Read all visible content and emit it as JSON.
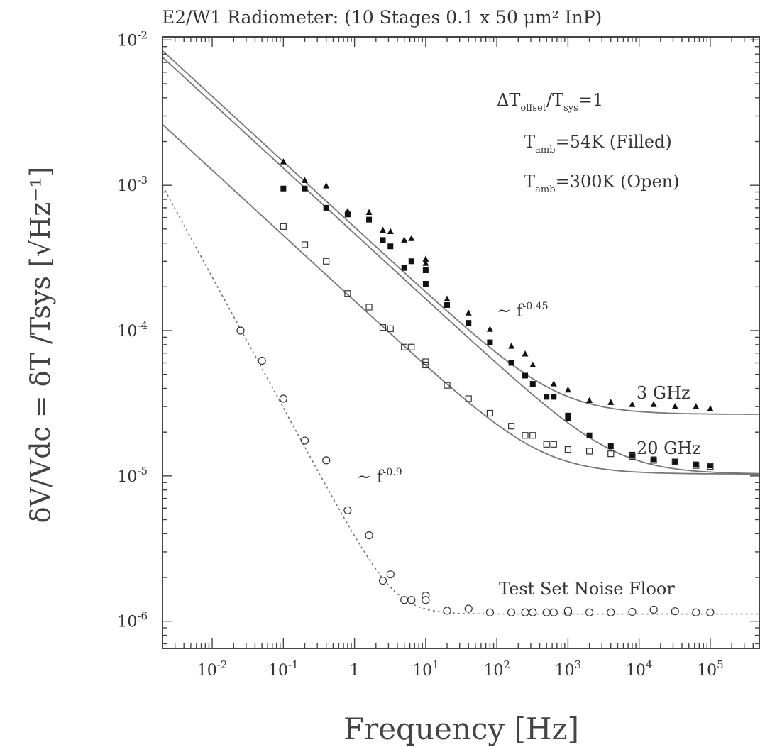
{
  "chart_data": {
    "type": "scatter",
    "title": "E2/W1 Radiometer: (10 Stages 0.1 x 50 μm² InP)",
    "xlabel": "Frequency [Hz]",
    "ylabel": "δV/Vdc = δT /Tsys [√Hz⁻¹]",
    "x_scale": "log",
    "y_scale": "log",
    "xlim": [
      0.002,
      500000
    ],
    "ylim": [
      6.5e-07,
      0.0105
    ],
    "x_ticks": [
      {
        "value": 0.01,
        "label": "10-2"
      },
      {
        "value": 0.1,
        "label": "10-1"
      },
      {
        "value": 1,
        "label": "1"
      },
      {
        "value": 10,
        "label": "101"
      },
      {
        "value": 100,
        "label": "102"
      },
      {
        "value": 1000,
        "label": "103"
      },
      {
        "value": 10000,
        "label": "104"
      },
      {
        "value": 100000,
        "label": "105"
      }
    ],
    "y_ticks": [
      {
        "value": 0.01,
        "label": "10-2"
      },
      {
        "value": 0.001,
        "label": "10-3"
      },
      {
        "value": 0.0001,
        "label": "10-4"
      },
      {
        "value": 1e-05,
        "label": "10-5"
      },
      {
        "value": 1e-06,
        "label": "10-6"
      }
    ],
    "series": [
      {
        "marker": "triangle-filled",
        "x": [
          0.1,
          0.2,
          0.4,
          0.8,
          1.6,
          2.5,
          3.2,
          5,
          6.3,
          10,
          10,
          20,
          40,
          80,
          160,
          250,
          320,
          630,
          1000,
          2000,
          4000,
          8000,
          16000,
          32000,
          63000,
          100000
        ],
        "y": [
          0.00145,
          0.00108,
          0.00099,
          0.00066,
          0.00065,
          0.00049,
          0.00048,
          0.00042,
          0.00043,
          0.00031,
          0.00029,
          0.000165,
          0.000132,
          0.000102,
          7.8e-05,
          6.9e-05,
          5.8e-05,
          4.3e-05,
          3.9e-05,
          3.3e-05,
          3.2e-05,
          3.1e-05,
          3.1e-05,
          3e-05,
          3e-05,
          2.9e-05
        ]
      },
      {
        "marker": "square-filled",
        "x": [
          0.1,
          0.2,
          0.4,
          0.8,
          1.6,
          2.5,
          3.2,
          5,
          6.3,
          10,
          10,
          20,
          40,
          80,
          160,
          250,
          320,
          500,
          630,
          1000,
          1000,
          2000,
          4000,
          8000,
          16000,
          32000,
          63000,
          100000
        ],
        "y": [
          0.00095,
          0.00095,
          0.0007,
          0.00063,
          0.00058,
          0.00042,
          0.00038,
          0.00027,
          0.0003,
          0.00026,
          0.00021,
          0.00015,
          0.000113,
          8.3e-05,
          6e-05,
          4.9e-05,
          4.3e-05,
          3.5e-05,
          3.5e-05,
          2.6e-05,
          2.5e-05,
          1.9e-05,
          1.6e-05,
          1.4e-05,
          1.3e-05,
          1.25e-05,
          1.2e-05,
          1.18e-05
        ]
      },
      {
        "marker": "square-open",
        "x": [
          0.1,
          0.2,
          0.4,
          0.8,
          1.6,
          2.5,
          3.2,
          5,
          6.3,
          10,
          10,
          20,
          40,
          80,
          160,
          250,
          320,
          500,
          630,
          1000,
          2000,
          4000,
          8000,
          16000,
          32000,
          63000,
          100000
        ],
        "y": [
          0.00052,
          0.00039,
          0.0003,
          0.00018,
          0.000145,
          0.000105,
          0.000103,
          7.7e-05,
          7.7e-05,
          6.1e-05,
          5.8e-05,
          4.2e-05,
          3.4e-05,
          2.7e-05,
          2.2e-05,
          1.9e-05,
          1.9e-05,
          1.65e-05,
          1.65e-05,
          1.52e-05,
          1.48e-05,
          1.42e-05,
          1.36e-05,
          1.28e-05,
          1.25e-05,
          1.18e-05,
          1.16e-05
        ]
      },
      {
        "marker": "circle-open",
        "x": [
          0.025,
          0.05,
          0.1,
          0.2,
          0.4,
          0.8,
          1.6,
          2.5,
          3.2,
          5,
          6.3,
          10,
          10,
          20,
          40,
          80,
          160,
          250,
          320,
          500,
          630,
          1000,
          1000,
          2000,
          4000,
          8000,
          16000,
          32000,
          63000,
          100000
        ],
        "y": [
          0.0001,
          6.2e-05,
          3.4e-05,
          1.75e-05,
          1.28e-05,
          5.8e-06,
          3.9e-06,
          1.9e-06,
          2.1e-06,
          1.4e-06,
          1.4e-06,
          1.5e-06,
          1.4e-06,
          1.18e-06,
          1.22e-06,
          1.15e-06,
          1.15e-06,
          1.15e-06,
          1.15e-06,
          1.15e-06,
          1.15e-06,
          1.15e-06,
          1.18e-06,
          1.15e-06,
          1.15e-06,
          1.16e-06,
          1.2e-06,
          1.17e-06,
          1.15e-06,
          1.15e-06
        ]
      }
    ],
    "fit_curves": [
      {
        "style": "solid",
        "A": 0.000515,
        "alpha": 0.45,
        "floor": 2.65e-05
      },
      {
        "style": "solid",
        "A": 0.000465,
        "alpha": 0.45,
        "floor": 1.03e-05
      },
      {
        "style": "solid",
        "A": 0.00016,
        "alpha": 0.45,
        "floor": 1.03e-05
      },
      {
        "style": "dotted",
        "A": 3.7e-06,
        "alpha": 0.9,
        "floor": 1.12e-06
      }
    ],
    "annotations": {
      "legend_line1_main": "ΔT",
      "legend_line1_sub1": "offset",
      "legend_line1_mid": "/T",
      "legend_line1_sub2": "sys",
      "legend_line1_end": "=1",
      "legend_line2_main": "T",
      "legend_line2_sub": "amb",
      "legend_line2_end": "=54K (Filled)",
      "legend_line3_main": "T",
      "legend_line3_sub": "amb",
      "legend_line3_end": "=300K (Open)",
      "slope1_prefix": "~ f",
      "slope1_exp": "-0.45",
      "slope2_prefix": "~ f",
      "slope2_exp": "-0.9",
      "label_3ghz": "3 GHz",
      "label_20ghz": "20 GHz",
      "label_noise": "Test Set Noise Floor"
    },
    "colors": {
      "line": "#777777",
      "marker": "#111111",
      "axis": "#444444",
      "text": "#333333"
    },
    "grid": false,
    "legend": "top-right"
  }
}
